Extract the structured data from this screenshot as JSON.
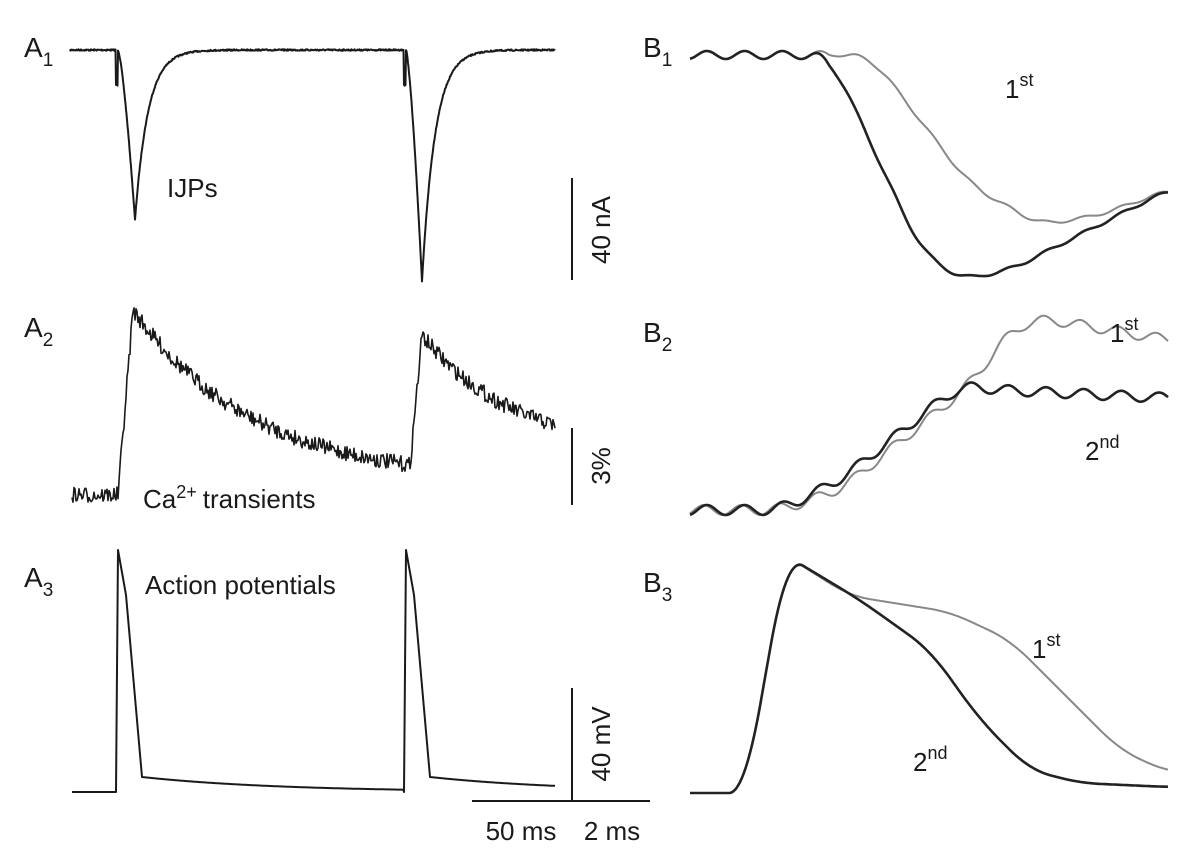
{
  "panel_labels": [
    {
      "letter": "A",
      "sub": "1"
    },
    {
      "letter": "A",
      "sub": "2"
    },
    {
      "letter": "A",
      "sub": "3"
    },
    {
      "letter": "B",
      "sub": "1"
    },
    {
      "letter": "B",
      "sub": "2"
    },
    {
      "letter": "B",
      "sub": "3"
    }
  ],
  "annotations": {
    "ijps": "IJPs",
    "ca": {
      "base": "Ca",
      "sup": "2+",
      "rest": "transients"
    },
    "ap": "Action potentials"
  },
  "trace_labels": [
    {
      "num": "1",
      "suffix": "st"
    },
    {
      "num": "1",
      "suffix": "st"
    },
    {
      "num": "2",
      "suffix": "nd"
    },
    {
      "num": "1",
      "suffix": "st"
    },
    {
      "num": "2",
      "suffix": "nd"
    }
  ],
  "scale_bars": {
    "current": "40 nA",
    "fluorescence": "3%",
    "voltage": "40 mV",
    "time_a": "50 ms",
    "time_b": "2 ms"
  }
}
